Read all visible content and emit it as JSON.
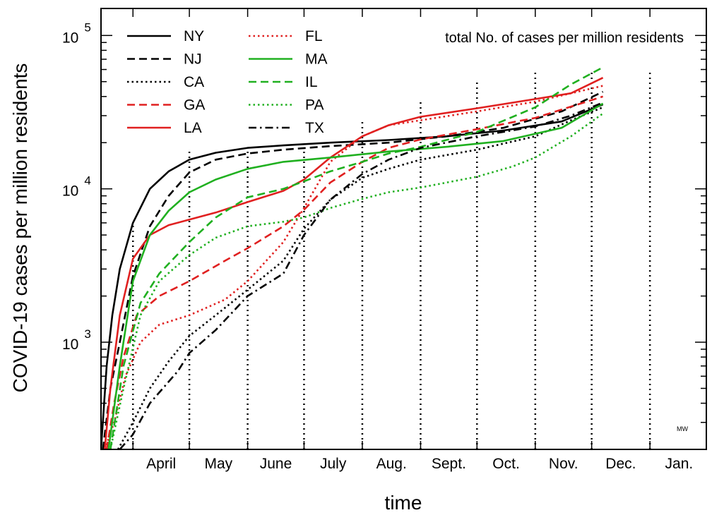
{
  "chart_data": {
    "type": "line",
    "title": "",
    "annotation": "total No. of cases per million residents",
    "signature": "MW",
    "xlabel": "time",
    "ylabel": "COVID-19 cases per million residents",
    "yscale": "log",
    "ylim": [
      200,
      150000
    ],
    "xlim": [
      "2020-03-15",
      "2021-01-31"
    ],
    "grid": false,
    "legend_placement": "top-left",
    "month_ticks": [
      {
        "label": "April",
        "date": "2020-04-01"
      },
      {
        "label": "May",
        "date": "2020-05-01"
      },
      {
        "label": "June",
        "date": "2020-06-01"
      },
      {
        "label": "July",
        "date": "2020-07-01"
      },
      {
        "label": "Aug.",
        "date": "2020-08-01"
      },
      {
        "label": "Sept.",
        "date": "2020-09-01"
      },
      {
        "label": "Oct.",
        "date": "2020-10-01"
      },
      {
        "label": "Nov.",
        "date": "2020-11-01"
      },
      {
        "label": "Dec.",
        "date": "2020-12-01"
      },
      {
        "label": "Jan.",
        "date": "2021-01-01"
      }
    ],
    "y_ticks": [
      {
        "base": "10",
        "exp": "3",
        "value": 1000
      },
      {
        "base": "10",
        "exp": "4",
        "value": 10000
      },
      {
        "base": "10",
        "exp": "5",
        "value": 100000
      }
    ],
    "series": [
      {
        "name": "NY",
        "color": "#000000",
        "dash": "solid",
        "points": [
          [
            "2020-03-15",
            200
          ],
          [
            "2020-03-18",
            700
          ],
          [
            "2020-03-21",
            1500
          ],
          [
            "2020-03-25",
            3000
          ],
          [
            "2020-04-01",
            6000
          ],
          [
            "2020-04-10",
            10000
          ],
          [
            "2020-04-20",
            13000
          ],
          [
            "2020-05-01",
            15500
          ],
          [
            "2020-05-15",
            17200
          ],
          [
            "2020-06-01",
            18500
          ],
          [
            "2020-06-20",
            19200
          ],
          [
            "2020-07-15",
            20000
          ],
          [
            "2020-08-15",
            20800
          ],
          [
            "2020-09-15",
            22000
          ],
          [
            "2020-10-15",
            24000
          ],
          [
            "2020-11-15",
            27500
          ],
          [
            "2020-12-07",
            35500
          ]
        ]
      },
      {
        "name": "NJ",
        "color": "#000000",
        "dash": "dashed",
        "points": [
          [
            "2020-03-16",
            200
          ],
          [
            "2020-03-20",
            500
          ],
          [
            "2020-03-25",
            1000
          ],
          [
            "2020-04-01",
            2700
          ],
          [
            "2020-04-10",
            5700
          ],
          [
            "2020-04-20",
            9000
          ],
          [
            "2020-05-01",
            12800
          ],
          [
            "2020-05-15",
            15500
          ],
          [
            "2020-06-01",
            17000
          ],
          [
            "2020-06-20",
            18000
          ],
          [
            "2020-07-15",
            19000
          ],
          [
            "2020-08-15",
            20000
          ],
          [
            "2020-09-15",
            22000
          ],
          [
            "2020-10-15",
            25000
          ],
          [
            "2020-11-15",
            32000
          ],
          [
            "2020-12-07",
            43000
          ]
        ]
      },
      {
        "name": "CA",
        "color": "#000000",
        "dash": "dotted",
        "points": [
          [
            "2020-03-24",
            200
          ],
          [
            "2020-04-01",
            300
          ],
          [
            "2020-04-10",
            500
          ],
          [
            "2020-04-20",
            750
          ],
          [
            "2020-05-01",
            1100
          ],
          [
            "2020-05-15",
            1500
          ],
          [
            "2020-06-01",
            2200
          ],
          [
            "2020-06-20",
            3400
          ],
          [
            "2020-07-01",
            5500
          ],
          [
            "2020-07-15",
            8500
          ],
          [
            "2020-08-01",
            11800
          ],
          [
            "2020-08-15",
            13500
          ],
          [
            "2020-09-01",
            15500
          ],
          [
            "2020-10-01",
            18000
          ],
          [
            "2020-11-01",
            22000
          ],
          [
            "2020-11-20",
            28000
          ],
          [
            "2020-12-07",
            34000
          ]
        ]
      },
      {
        "name": "GA",
        "color": "#e02020",
        "dash": "dashed",
        "points": [
          [
            "2020-03-18",
            200
          ],
          [
            "2020-03-22",
            400
          ],
          [
            "2020-03-27",
            800
          ],
          [
            "2020-04-03",
            1500
          ],
          [
            "2020-04-15",
            2000
          ],
          [
            "2020-05-01",
            2500
          ],
          [
            "2020-05-20",
            3400
          ],
          [
            "2020-06-01",
            4100
          ],
          [
            "2020-06-20",
            5700
          ],
          [
            "2020-07-01",
            7300
          ],
          [
            "2020-07-15",
            11000
          ],
          [
            "2020-08-01",
            15000
          ],
          [
            "2020-08-15",
            18500
          ],
          [
            "2020-09-01",
            21000
          ],
          [
            "2020-10-01",
            24500
          ],
          [
            "2020-11-01",
            29000
          ],
          [
            "2020-12-07",
            40000
          ]
        ]
      },
      {
        "name": "LA",
        "color": "#e02020",
        "dash": "solid",
        "points": [
          [
            "2020-03-17",
            200
          ],
          [
            "2020-03-20",
            500
          ],
          [
            "2020-03-25",
            1500
          ],
          [
            "2020-04-01",
            3500
          ],
          [
            "2020-04-10",
            5000
          ],
          [
            "2020-04-20",
            5800
          ],
          [
            "2020-05-01",
            6300
          ],
          [
            "2020-05-15",
            7000
          ],
          [
            "2020-06-01",
            8200
          ],
          [
            "2020-06-20",
            9700
          ],
          [
            "2020-07-01",
            11500
          ],
          [
            "2020-07-15",
            16000
          ],
          [
            "2020-08-01",
            22000
          ],
          [
            "2020-08-15",
            26000
          ],
          [
            "2020-09-01",
            29500
          ],
          [
            "2020-10-01",
            33500
          ],
          [
            "2020-11-01",
            38500
          ],
          [
            "2020-11-20",
            42000
          ],
          [
            "2020-12-07",
            53000
          ]
        ]
      },
      {
        "name": "FL",
        "color": "#e02020",
        "dash": "dotted",
        "points": [
          [
            "2020-03-17",
            200
          ],
          [
            "2020-03-22",
            300
          ],
          [
            "2020-03-28",
            600
          ],
          [
            "2020-04-05",
            1000
          ],
          [
            "2020-04-15",
            1300
          ],
          [
            "2020-05-01",
            1500
          ],
          [
            "2020-05-20",
            1900
          ],
          [
            "2020-06-01",
            2500
          ],
          [
            "2020-06-20",
            4500
          ],
          [
            "2020-07-01",
            7500
          ],
          [
            "2020-07-15",
            15000
          ],
          [
            "2020-08-01",
            22000
          ],
          [
            "2020-08-15",
            26000
          ],
          [
            "2020-09-01",
            28000
          ],
          [
            "2020-10-01",
            32000
          ],
          [
            "2020-11-01",
            37000
          ],
          [
            "2020-12-07",
            47000
          ]
        ]
      },
      {
        "name": "MA",
        "color": "#20b020",
        "dash": "solid",
        "points": [
          [
            "2020-03-19",
            200
          ],
          [
            "2020-03-25",
            700
          ],
          [
            "2020-04-01",
            2500
          ],
          [
            "2020-04-10",
            5000
          ],
          [
            "2020-04-20",
            7200
          ],
          [
            "2020-05-01",
            9500
          ],
          [
            "2020-05-15",
            11500
          ],
          [
            "2020-06-01",
            13500
          ],
          [
            "2020-06-20",
            15000
          ],
          [
            "2020-07-15",
            16000
          ],
          [
            "2020-08-15",
            17500
          ],
          [
            "2020-09-15",
            18800
          ],
          [
            "2020-10-15",
            20500
          ],
          [
            "2020-11-15",
            25000
          ],
          [
            "2020-12-07",
            36000
          ]
        ]
      },
      {
        "name": "IL",
        "color": "#20b020",
        "dash": "dashed",
        "points": [
          [
            "2020-03-20",
            200
          ],
          [
            "2020-03-27",
            700
          ],
          [
            "2020-04-05",
            1800
          ],
          [
            "2020-04-15",
            2800
          ],
          [
            "2020-05-01",
            4500
          ],
          [
            "2020-05-15",
            6500
          ],
          [
            "2020-06-01",
            8800
          ],
          [
            "2020-06-20",
            10000
          ],
          [
            "2020-07-01",
            11200
          ],
          [
            "2020-07-15",
            13000
          ],
          [
            "2020-08-01",
            15000
          ],
          [
            "2020-08-15",
            17000
          ],
          [
            "2020-09-01",
            18800
          ],
          [
            "2020-10-01",
            23500
          ],
          [
            "2020-11-01",
            34000
          ],
          [
            "2020-11-20",
            48000
          ],
          [
            "2020-12-07",
            62000
          ]
        ]
      },
      {
        "name": "PA",
        "color": "#20b020",
        "dash": "dotted",
        "points": [
          [
            "2020-03-20",
            200
          ],
          [
            "2020-03-27",
            500
          ],
          [
            "2020-04-05",
            1500
          ],
          [
            "2020-04-15",
            2500
          ],
          [
            "2020-05-01",
            3700
          ],
          [
            "2020-05-15",
            4800
          ],
          [
            "2020-06-01",
            5700
          ],
          [
            "2020-06-20",
            6100
          ],
          [
            "2020-07-01",
            6500
          ],
          [
            "2020-07-15",
            7500
          ],
          [
            "2020-08-01",
            8600
          ],
          [
            "2020-08-15",
            9500
          ],
          [
            "2020-09-01",
            10200
          ],
          [
            "2020-10-01",
            12000
          ],
          [
            "2020-10-20",
            14000
          ],
          [
            "2020-11-01",
            16000
          ],
          [
            "2020-11-20",
            22000
          ],
          [
            "2020-12-07",
            31000
          ]
        ]
      },
      {
        "name": "TX",
        "color": "#000000",
        "dash": "dashdot",
        "points": [
          [
            "2020-03-25",
            200
          ],
          [
            "2020-04-01",
            250
          ],
          [
            "2020-04-10",
            400
          ],
          [
            "2020-04-25",
            650
          ],
          [
            "2020-05-01",
            850
          ],
          [
            "2020-05-15",
            1200
          ],
          [
            "2020-06-01",
            2000
          ],
          [
            "2020-06-20",
            2800
          ],
          [
            "2020-07-01",
            5000
          ],
          [
            "2020-07-15",
            8500
          ],
          [
            "2020-08-01",
            12500
          ],
          [
            "2020-08-15",
            15500
          ],
          [
            "2020-09-01",
            18500
          ],
          [
            "2020-10-01",
            22000
          ],
          [
            "2020-11-01",
            25500
          ],
          [
            "2020-11-20",
            30000
          ],
          [
            "2020-12-07",
            36500
          ]
        ]
      }
    ]
  }
}
